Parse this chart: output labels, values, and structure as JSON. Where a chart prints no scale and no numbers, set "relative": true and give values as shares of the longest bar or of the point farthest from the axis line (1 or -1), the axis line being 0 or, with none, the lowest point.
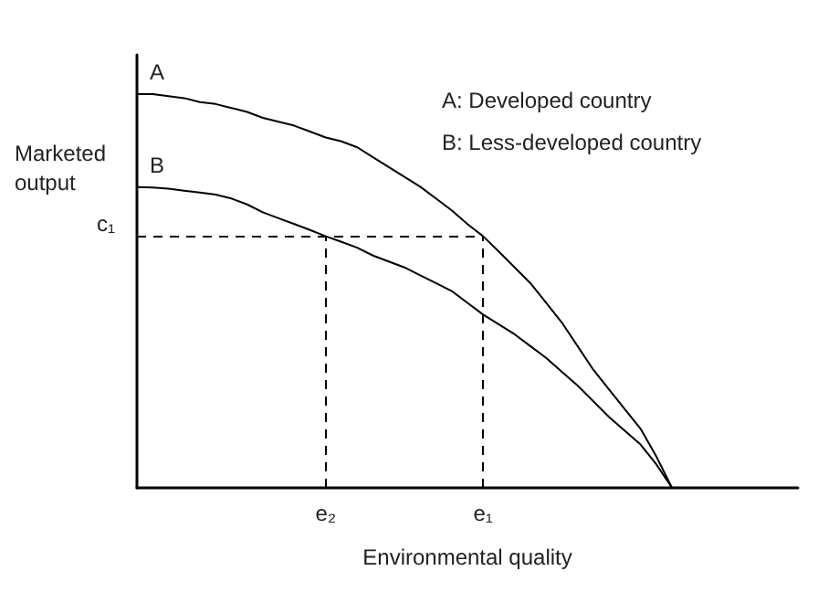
{
  "chart_data": {
    "type": "line",
    "relative": true,
    "xlabel": "Environmental quality",
    "ylabel": "Marketed output",
    "grid": false,
    "legend": false,
    "marker": "none",
    "line_style": "solid",
    "categories": [
      null,
      null,
      null,
      null,
      null,
      null,
      null,
      null,
      null,
      null,
      null,
      null,
      "e₂",
      null,
      null,
      null,
      null,
      null,
      null,
      null,
      null,
      null,
      "e₁",
      null,
      null,
      null,
      null,
      null,
      null,
      null,
      null,
      null,
      null,
      null,
      null,
      null,
      null,
      null,
      null,
      null,
      null,
      null,
      null
    ],
    "series": [
      {
        "name": "A",
        "color": "#000000",
        "values": [
          1,
          1,
          0.995,
          0.99,
          0.98,
          0.975,
          0.965,
          0.955,
          0.94,
          0.93,
          0.92,
          0.905,
          0.89,
          0.88,
          0.865,
          0.84,
          0.815,
          0.79,
          0.765,
          0.735,
          0.705,
          0.67,
          0.639,
          0.6,
          0.56,
          0.52,
          0.47,
          0.42,
          0.36,
          0.3,
          0.25,
          0.2,
          0.15,
          0.08,
          0,
          null,
          null,
          null,
          null,
          null,
          null,
          null,
          null
        ]
      },
      {
        "name": "B",
        "color": "#000000",
        "values": [
          0.764,
          0.763,
          0.76,
          0.755,
          0.75,
          0.745,
          0.735,
          0.72,
          0.7,
          0.685,
          0.67,
          0.655,
          0.639,
          0.625,
          0.61,
          0.59,
          0.575,
          0.56,
          0.54,
          0.52,
          0.5,
          0.47,
          0.44,
          0.415,
          0.39,
          0.36,
          0.33,
          0.295,
          0.26,
          0.22,
          0.18,
          0.145,
          0.11,
          0.06,
          0,
          null,
          null,
          null,
          null,
          null,
          null,
          null,
          null
        ]
      }
    ],
    "ref_lines": [
      {
        "axis": "y",
        "value": 0.639,
        "label": "c₁",
        "color": "#000000",
        "line_style": "dashed"
      }
    ],
    "annotations": [
      "A: Developed country",
      "B: Less-developed country"
    ]
  }
}
